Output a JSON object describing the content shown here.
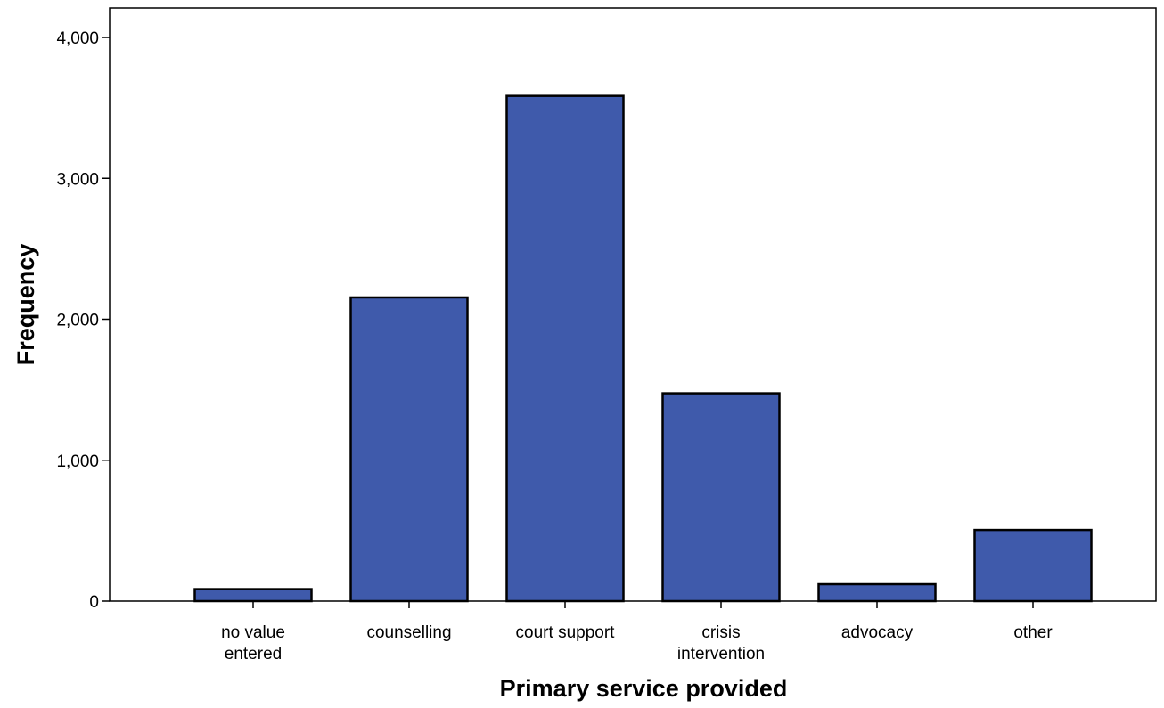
{
  "chart_data": {
    "type": "bar",
    "title": "",
    "xlabel": "Primary service provided",
    "ylabel": "Frequency",
    "categories": [
      [
        "no value",
        "entered"
      ],
      [
        "counselling"
      ],
      [
        "court support"
      ],
      [
        "crisis",
        "intervention"
      ],
      [
        "advocacy"
      ],
      [
        "other"
      ]
    ],
    "values": [
      85,
      2155,
      3585,
      1475,
      120,
      505
    ],
    "ylim": [
      0,
      4200
    ],
    "yticks": [
      0,
      1000,
      2000,
      3000,
      4000
    ],
    "ytick_labels": [
      "0",
      "1,000",
      "2,000",
      "3,000",
      "4,000"
    ],
    "grid": false,
    "bar_color": "#3f5aab",
    "bar_edge_color": "#000000"
  }
}
